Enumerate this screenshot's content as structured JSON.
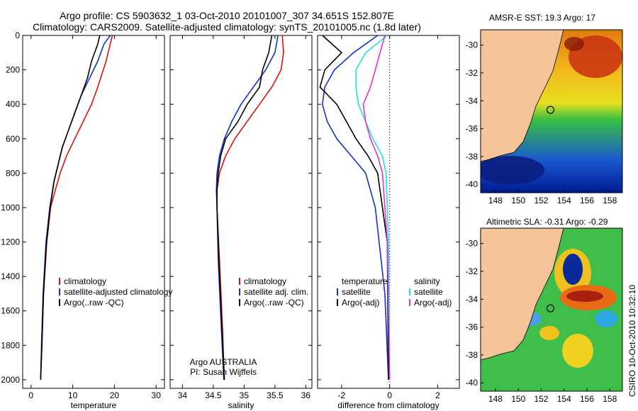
{
  "title": {
    "line1": "Argo profile: CS 5903632_1 03-Oct-2010 20101007_307 34.651S 152.807E",
    "line2": "Climatology: CARS2009. Satellite-adjusted climatology: synTS_20101005.nc (1.8d later)"
  },
  "colors": {
    "climatology": "#dd1111",
    "satellite": "#1133cc",
    "argo": "#000000",
    "sal_satellite": "#22e0e0",
    "sal_argo": "#dd33dd"
  },
  "chart_data": [
    {
      "type": "line",
      "id": "temperature",
      "xlabel": "temperature",
      "ylabel": "",
      "xlim": [
        -2,
        32
      ],
      "ylim": [
        2050,
        0
      ],
      "xticks": [
        "0",
        "10",
        "20",
        "30"
      ],
      "xtick_values": [
        0,
        10,
        20,
        30
      ],
      "yticks": [
        "0",
        "200",
        "400",
        "600",
        "800",
        "1000",
        "1200",
        "1400",
        "1600",
        "1800",
        "2000"
      ],
      "ytick_values": [
        0,
        200,
        400,
        600,
        800,
        1000,
        1200,
        1400,
        1600,
        1800,
        2000
      ],
      "legend": [
        "climatology",
        "satellite-adjusted climatology",
        "Argo(..raw -QC)"
      ],
      "series": [
        {
          "name": "climatology",
          "color": "red",
          "x": [
            19.5,
            19.0,
            18.0,
            16.0,
            14.5,
            12.5,
            10.5,
            8.5,
            7.0,
            5.8,
            4.7,
            3.8,
            3.0,
            2.6,
            2.3
          ],
          "y": [
            0,
            50,
            150,
            300,
            400,
            500,
            600,
            700,
            800,
            900,
            1000,
            1200,
            1500,
            1800,
            2000
          ]
        },
        {
          "name": "satellite-adjusted climatology",
          "color": "blue",
          "x": [
            19.0,
            17.5,
            16.0,
            14.0,
            12.0,
            10.5,
            9.0,
            7.5,
            6.5,
            5.5,
            4.5,
            3.6,
            2.9,
            2.5,
            2.3
          ],
          "y": [
            0,
            50,
            150,
            250,
            350,
            450,
            550,
            650,
            750,
            850,
            1000,
            1200,
            1500,
            1800,
            2000
          ]
        },
        {
          "name": "Argo(..raw -QC)",
          "color": "black",
          "x": [
            16.5,
            16.0,
            14.5,
            13.5,
            12.0,
            10.5,
            9.0,
            7.5,
            6.5,
            5.5,
            4.6,
            3.7,
            3.0,
            2.6,
            2.3
          ],
          "y": [
            0,
            50,
            150,
            250,
            350,
            450,
            550,
            650,
            750,
            850,
            1000,
            1200,
            1500,
            1800,
            2000
          ]
        }
      ]
    },
    {
      "type": "line",
      "id": "salinity",
      "xlabel": "salinity",
      "ylabel": "",
      "xlim": [
        33.8,
        36.1
      ],
      "ylim": [
        2050,
        0
      ],
      "xticks": [
        "34",
        "34.5",
        "35",
        "35.5",
        "36"
      ],
      "xtick_values": [
        34,
        34.5,
        35,
        35.5,
        36
      ],
      "legend": [
        "climatology",
        "satellite adj. clim.",
        "Argo(..raw -QC)"
      ],
      "annotation": [
        "Argo AUSTRALIA",
        "PI: Susan Wijffels"
      ],
      "series": [
        {
          "name": "climatology",
          "color": "red",
          "x": [
            35.62,
            35.64,
            35.6,
            35.45,
            35.25,
            35.05,
            34.85,
            34.7,
            34.6,
            34.56,
            34.56,
            34.6,
            34.65,
            34.68
          ],
          "y": [
            0,
            100,
            200,
            300,
            400,
            500,
            600,
            700,
            800,
            900,
            1000,
            1300,
            1700,
            2000
          ]
        },
        {
          "name": "satellite adj. clim.",
          "color": "blue",
          "x": [
            35.55,
            35.5,
            35.35,
            35.15,
            34.95,
            34.8,
            34.68,
            34.6,
            34.56,
            34.55,
            34.56,
            34.58,
            34.63,
            34.67
          ],
          "y": [
            0,
            100,
            200,
            300,
            400,
            500,
            600,
            700,
            800,
            900,
            1000,
            1300,
            1700,
            2000
          ]
        },
        {
          "name": "Argo(..raw -QC)",
          "color": "black",
          "x": [
            35.45,
            35.4,
            35.3,
            35.25,
            35.05,
            34.9,
            34.7,
            34.62,
            34.58,
            34.56,
            34.56,
            34.59,
            34.64,
            34.68
          ],
          "y": [
            0,
            100,
            200,
            300,
            400,
            500,
            600,
            700,
            800,
            900,
            1000,
            1300,
            1700,
            2000
          ]
        }
      ]
    },
    {
      "type": "line",
      "id": "difference",
      "xlabel": "difference from climatology",
      "ylabel": "",
      "xlim": [
        -3,
        2.9
      ],
      "ylim": [
        2050,
        0
      ],
      "xticks": [
        "-2",
        "0",
        "2"
      ],
      "xtick_values": [
        -2,
        0,
        2
      ],
      "legend_temperature": [
        "temperature",
        "satellite",
        "Argo(-adj)"
      ],
      "legend_salinity": [
        "salinity",
        "satellite",
        "Argo(-adj)"
      ],
      "series": [
        {
          "name": "temperature satellite",
          "color": "blue",
          "x": [
            -0.5,
            -1.5,
            -2.3,
            -2.7,
            -2.8,
            -2.6,
            -2.2,
            -1.6,
            -1.0,
            -0.6,
            -0.2,
            -0.05
          ],
          "y": [
            0,
            100,
            200,
            300,
            400,
            500,
            600,
            700,
            800,
            1000,
            1500,
            2000
          ]
        },
        {
          "name": "temperature Argo(-adj)",
          "color": "black",
          "x": [
            -2.8,
            -2.0,
            -2.7,
            -2.9,
            -2.2,
            -1.8,
            -1.4,
            -0.9,
            -0.5,
            -0.1,
            -0.05
          ],
          "y": [
            0,
            100,
            200,
            300,
            400,
            500,
            600,
            700,
            800,
            1200,
            2000
          ]
        },
        {
          "name": "salinity satellite",
          "color": "cyan",
          "x": [
            -0.1,
            -1.0,
            -1.4,
            -1.4,
            -1.3,
            -1.0,
            -0.7,
            -0.3,
            -0.15,
            -0.05,
            0.0
          ],
          "y": [
            0,
            100,
            200,
            300,
            400,
            500,
            600,
            700,
            800,
            1200,
            2000
          ]
        },
        {
          "name": "salinity Argo(-adj)",
          "color": "magenta",
          "x": [
            -0.2,
            -0.6,
            -0.8,
            -1.1,
            -1.0,
            -0.8,
            -0.5,
            -0.3,
            -0.1,
            0.0
          ],
          "y": [
            0,
            200,
            300,
            400,
            500,
            600,
            700,
            800,
            1200,
            2000
          ]
        }
      ]
    },
    {
      "type": "heatmap",
      "id": "sst_map",
      "title": "AMSR-E SST: 19.3 Argo: 17",
      "xlim": [
        146.7,
        159.1
      ],
      "ylim": [
        -40.6,
        -28.9
      ],
      "xticks": [
        "148",
        "150",
        "152",
        "154",
        "156",
        "158"
      ],
      "xtick_values": [
        148,
        150,
        152,
        154,
        156,
        158
      ],
      "yticks": [
        "-30",
        "-32",
        "-34",
        "-36",
        "-38",
        "-40"
      ],
      "ytick_values": [
        -30,
        -32,
        -34,
        -36,
        -38,
        -40
      ],
      "float_position": {
        "lon": 152.807,
        "lat": -34.651
      }
    },
    {
      "type": "heatmap",
      "id": "sla_map",
      "title": "Altimetric SLA: -0.31 Argo: -0.29",
      "xlim": [
        146.7,
        159.1
      ],
      "ylim": [
        -40.6,
        -28.9
      ],
      "xticks": [
        "148",
        "150",
        "152",
        "154",
        "156",
        "158"
      ],
      "xtick_values": [
        148,
        150,
        152,
        154,
        156,
        158
      ],
      "yticks": [
        "-30",
        "-32",
        "-34",
        "-36",
        "-38",
        "-40"
      ],
      "ytick_values": [
        -30,
        -32,
        -34,
        -36,
        -38,
        -40
      ],
      "float_position": {
        "lon": 152.807,
        "lat": -34.651
      }
    }
  ],
  "stamp": "CSIRO 10-Oct-2010 10:32:10"
}
